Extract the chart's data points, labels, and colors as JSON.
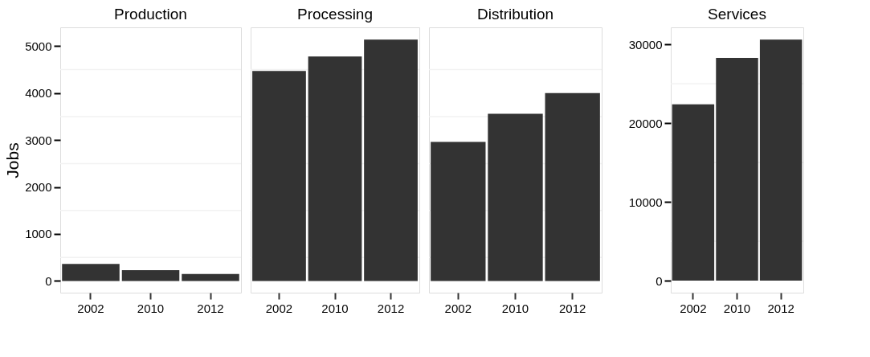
{
  "chart_data": [
    {
      "type": "bar",
      "title": "Production",
      "ylabel": "Jobs",
      "categories": [
        "2002",
        "2010",
        "2012"
      ],
      "values": [
        360,
        230,
        150
      ],
      "color": "#333333",
      "ylim": [
        -250,
        5400
      ],
      "yticks": [
        0,
        1000,
        2000,
        3000,
        4000,
        5000
      ],
      "grid": "y"
    },
    {
      "type": "bar",
      "title": "Processing",
      "categories": [
        "2002",
        "2010",
        "2012"
      ],
      "values": [
        4470,
        4780,
        5140
      ],
      "color": "#333333",
      "ylim": [
        -250,
        5400
      ],
      "yticks": [
        0,
        1000,
        2000,
        3000,
        4000,
        5000
      ],
      "grid": "y",
      "tick_labels": "x"
    },
    {
      "type": "bar",
      "title": "Distribution",
      "categories": [
        "2002",
        "2010",
        "2012"
      ],
      "values": [
        2960,
        3560,
        4000
      ],
      "color": "#333333",
      "ylim": [
        -250,
        5400
      ],
      "yticks": [
        0,
        1000,
        2000,
        3000,
        4000,
        5000
      ],
      "grid": "y",
      "tick_labels": "x"
    },
    {
      "type": "bar",
      "title": "Services",
      "categories": [
        "2002",
        "2010",
        "2012"
      ],
      "values": [
        22400,
        28300,
        30600
      ],
      "color": "#333333",
      "ylim": [
        -1530,
        32170
      ],
      "yticks": [
        0,
        10000,
        20000,
        30000
      ],
      "grid": "y"
    }
  ]
}
